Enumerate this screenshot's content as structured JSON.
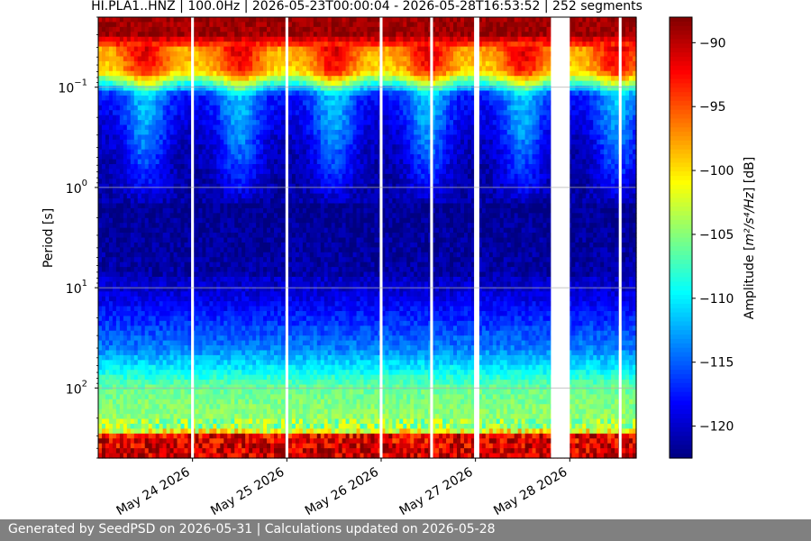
{
  "chart_data": {
    "type": "heatmap",
    "title": "HI.PLA1..HNZ | 100.0Hz | 2026-05-23T00:00:04 - 2026-05-28T16:53:52 | 252 segments",
    "ylabel": "Period [s]",
    "y_scale": "log",
    "y_inverted": true,
    "ylim": [
      0.02,
      500
    ],
    "y_ticks": [
      {
        "value": 0.1,
        "base": "10",
        "exp": "−1"
      },
      {
        "value": 1,
        "base": "10",
        "exp": "0"
      },
      {
        "value": 10,
        "base": "10",
        "exp": "1"
      },
      {
        "value": 100,
        "base": "10",
        "exp": "2"
      }
    ],
    "xlim": [
      "2026-05-23T00:00:04",
      "2026-05-28T16:53:52"
    ],
    "x_ticks": [
      "May 24 2026",
      "May 25 2026",
      "May 26 2026",
      "May 27 2026",
      "May 28 2026"
    ],
    "grid": "horizontal",
    "colorbar": {
      "label_prefix": "Amplitude [",
      "label_units": "m²/s⁴/Hz",
      "label_suffix": "] [dB]",
      "range": [
        -122.5,
        -88
      ],
      "ticks": [
        "−90",
        "−95",
        "−100",
        "−105",
        "−110",
        "−115",
        "−120"
      ],
      "tick_values": [
        -90,
        -95,
        -100,
        -105,
        -110,
        -115,
        -120
      ],
      "colormap": "jet"
    },
    "data_gaps_days": [
      [
        0.985,
        1.015
      ],
      [
        1.985,
        2.015
      ],
      [
        2.985,
        3.015
      ],
      [
        3.52,
        3.55
      ],
      [
        3.985,
        4.04
      ],
      [
        4.8,
        5.0
      ],
      [
        5.52,
        5.55
      ]
    ],
    "amplitude_profile": [
      {
        "period": 0.022,
        "db": -89
      },
      {
        "period": 0.03,
        "db": -89
      },
      {
        "period": 0.04,
        "db": -95
      },
      {
        "period": 0.07,
        "db": -97
      },
      {
        "period": 0.12,
        "db": -115
      },
      {
        "period": 0.4,
        "db": -118
      },
      {
        "period": 1.5,
        "db": -121
      },
      {
        "period": 10,
        "db": -120
      },
      {
        "period": 40,
        "db": -114
      },
      {
        "period": 100,
        "db": -106
      },
      {
        "period": 260,
        "db": -104
      },
      {
        "period": 300,
        "db": -92
      },
      {
        "period": 500,
        "db": -90
      }
    ]
  },
  "footer": {
    "text": "Generated by SeedPSD on 2026-05-31 | Calculations updated on 2026-05-28"
  }
}
